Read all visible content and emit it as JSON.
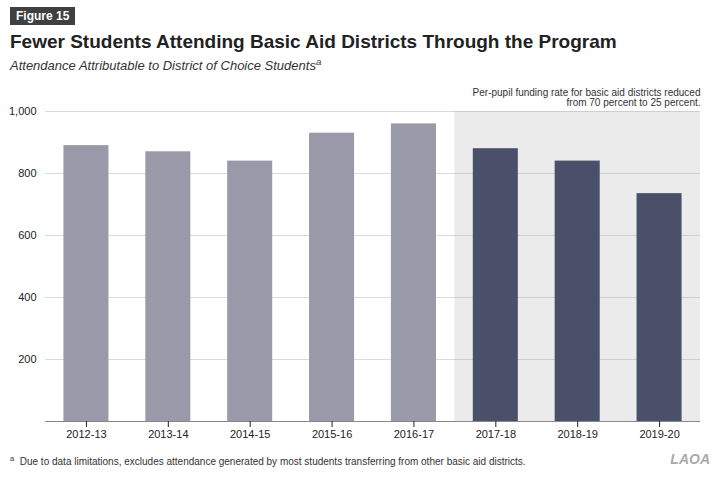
{
  "chart_data": {
    "type": "bar",
    "figure_label": "Figure 15",
    "title": "Fewer Students Attending Basic Aid Districts Through the Program",
    "subtitle": "Attendance Attributable to District of Choice Students",
    "subtitle_superscript": "a",
    "annotation": "Per-pupil funding rate for basic aid districts reduced\nfrom 70 percent to 25 percent.",
    "footnote": "Due to data limitations, excludes attendance generated by most students transferring from other basic aid districts.",
    "footnote_superscript": "a",
    "watermark": "LAOA",
    "categories": [
      "2012-13",
      "2013-14",
      "2014-15",
      "2015-16",
      "2016-17",
      "2017-18",
      "2018-19",
      "2019-20"
    ],
    "values": [
      890,
      870,
      840,
      930,
      960,
      880,
      840,
      735
    ],
    "colors": [
      "#9999aa",
      "#9999aa",
      "#9999aa",
      "#9999aa",
      "#9999aa",
      "#4a4f6a",
      "#4a4f6a",
      "#4a4f6a"
    ],
    "shaded_region": {
      "start": "2017-18",
      "end": "2019-20",
      "color": "#ebebeb"
    },
    "ylim": [
      0,
      1000
    ],
    "yticks": [
      {
        "value": 0,
        "label": null
      },
      200,
      400,
      600,
      800,
      {
        "value": 1000,
        "label": "1,000"
      }
    ],
    "grid": true
  }
}
